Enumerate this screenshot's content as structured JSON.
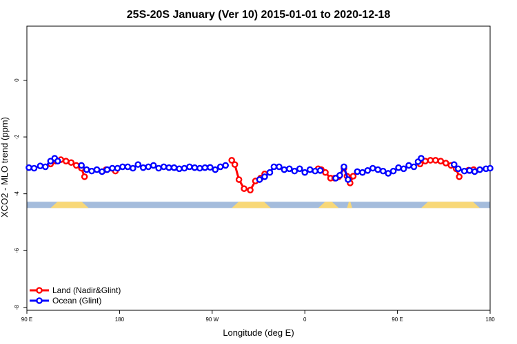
{
  "chart_data": {
    "type": "line",
    "title": "25S-20S January (Ver 10)   2015-01-01 to 2020-12-18",
    "xlabel": "Longitude (deg E)",
    "ylabel": "XCO2 - MLO trend (ppm)",
    "x_ticks": [
      {
        "value": 90,
        "label": "90 E"
      },
      {
        "value": 180,
        "label": "180"
      },
      {
        "value": 270,
        "label": "90 W"
      },
      {
        "value": 360,
        "label": "0"
      },
      {
        "value": 450,
        "label": "90 E"
      },
      {
        "value": 540,
        "label": "180"
      }
    ],
    "y_ticks": [
      0,
      -2,
      -4,
      -6,
      -8
    ],
    "xlim": [
      90,
      540
    ],
    "ylim": [
      -8.1,
      1.9
    ],
    "grid": false,
    "legend_position": "bottom-left",
    "colors": {
      "land": "#ff0000",
      "ocean": "#0000ff",
      "sea_band": "#a4bcdc",
      "land_band": "#f8d878"
    },
    "series": [
      {
        "name": "Land (Nadir&Glint)",
        "color": "#ff0000",
        "segments": [
          [
            [
              113,
              -2.95
            ],
            [
              118,
              -2.85
            ],
            [
              123,
              -2.8
            ],
            [
              128,
              -2.85
            ],
            [
              133,
              -2.9
            ],
            [
              138,
              -3.0
            ],
            [
              143,
              -3.1
            ],
            [
              146,
              -3.4
            ]
          ],
          [
            [
              167,
              -3.15
            ],
            [
              176,
              -3.2
            ]
          ],
          [
            [
              289,
              -2.82
            ],
            [
              292,
              -2.97
            ],
            [
              296,
              -3.5
            ],
            [
              301,
              -3.82
            ],
            [
              307,
              -3.87
            ],
            [
              312,
              -3.55
            ],
            [
              317,
              -3.45
            ],
            [
              321,
              -3.3
            ]
          ],
          [
            [
              373,
              -3.12
            ],
            [
              376,
              -3.15
            ],
            [
              380,
              -3.25
            ],
            [
              385,
              -3.45
            ],
            [
              389,
              -3.45
            ],
            [
              393,
              -3.4
            ],
            [
              398,
              -3.1
            ],
            [
              401,
              -3.38
            ],
            [
              404,
              -3.62
            ],
            [
              407,
              -3.38
            ]
          ],
          [
            [
              472,
              -2.95
            ],
            [
              477,
              -2.85
            ],
            [
              482,
              -2.82
            ],
            [
              487,
              -2.82
            ],
            [
              492,
              -2.85
            ],
            [
              497,
              -2.92
            ],
            [
              502,
              -3.0
            ],
            [
              507,
              -3.12
            ],
            [
              510,
              -3.4
            ]
          ],
          [
            [
              519,
              -3.17
            ],
            [
              524,
              -3.15
            ]
          ]
        ]
      },
      {
        "name": "Ocean (Glint)",
        "color": "#0000ff",
        "segments": [
          [
            [
              92,
              -3.08
            ],
            [
              97,
              -3.1
            ],
            [
              103,
              -3.02
            ],
            [
              108,
              -3.05
            ],
            [
              113,
              -2.85
            ],
            [
              117,
              -2.75
            ],
            [
              120,
              -2.85
            ]
          ],
          [
            [
              143,
              -3.0
            ],
            [
              148,
              -3.15
            ],
            [
              153,
              -3.2
            ],
            [
              158,
              -3.15
            ],
            [
              163,
              -3.22
            ],
            [
              168,
              -3.15
            ],
            [
              173,
              -3.1
            ],
            [
              178,
              -3.1
            ],
            [
              183,
              -3.05
            ],
            [
              188,
              -3.05
            ],
            [
              193,
              -3.1
            ],
            [
              198,
              -2.97
            ],
            [
              203,
              -3.08
            ],
            [
              208,
              -3.05
            ],
            [
              213,
              -3.0
            ],
            [
              218,
              -3.1
            ],
            [
              223,
              -3.05
            ],
            [
              228,
              -3.08
            ],
            [
              233,
              -3.08
            ],
            [
              238,
              -3.12
            ],
            [
              243,
              -3.1
            ],
            [
              248,
              -3.05
            ],
            [
              253,
              -3.08
            ],
            [
              258,
              -3.1
            ],
            [
              263,
              -3.08
            ],
            [
              268,
              -3.07
            ],
            [
              273,
              -3.15
            ],
            [
              278,
              -3.05
            ],
            [
              283,
              -3.0
            ]
          ],
          [
            [
              316,
              -3.5
            ],
            [
              321,
              -3.4
            ],
            [
              326,
              -3.25
            ],
            [
              330,
              -3.05
            ],
            [
              335,
              -3.05
            ],
            [
              340,
              -3.15
            ],
            [
              345,
              -3.12
            ],
            [
              350,
              -3.2
            ],
            [
              355,
              -3.12
            ],
            [
              360,
              -3.25
            ],
            [
              365,
              -3.15
            ],
            [
              370,
              -3.2
            ],
            [
              375,
              -3.18
            ]
          ],
          [
            [
              390,
              -3.45
            ],
            [
              394,
              -3.35
            ],
            [
              398,
              -3.05
            ],
            [
              402,
              -3.5
            ]
          ],
          [
            [
              411,
              -3.22
            ],
            [
              416,
              -3.25
            ],
            [
              421,
              -3.18
            ],
            [
              426,
              -3.1
            ],
            [
              431,
              -3.15
            ],
            [
              436,
              -3.2
            ],
            [
              441,
              -3.28
            ],
            [
              446,
              -3.2
            ],
            [
              451,
              -3.08
            ],
            [
              456,
              -3.12
            ],
            [
              461,
              -3.0
            ],
            [
              466,
              -3.05
            ],
            [
              470,
              -2.87
            ],
            [
              473,
              -2.75
            ]
          ],
          [
            [
              505,
              -2.97
            ],
            [
              509,
              -3.12
            ],
            [
              515,
              -3.2
            ],
            [
              520,
              -3.18
            ],
            [
              525,
              -3.22
            ],
            [
              530,
              -3.15
            ],
            [
              536,
              -3.12
            ],
            [
              540,
              -3.1
            ]
          ]
        ]
      }
    ],
    "surface_band": {
      "y_top": -4.28,
      "y_bottom": -4.5,
      "land_regions": [
        [
          113,
          150
        ],
        [
          289,
          327
        ],
        [
          373,
          393
        ],
        [
          401,
          406
        ],
        [
          473,
          530
        ]
      ]
    }
  }
}
